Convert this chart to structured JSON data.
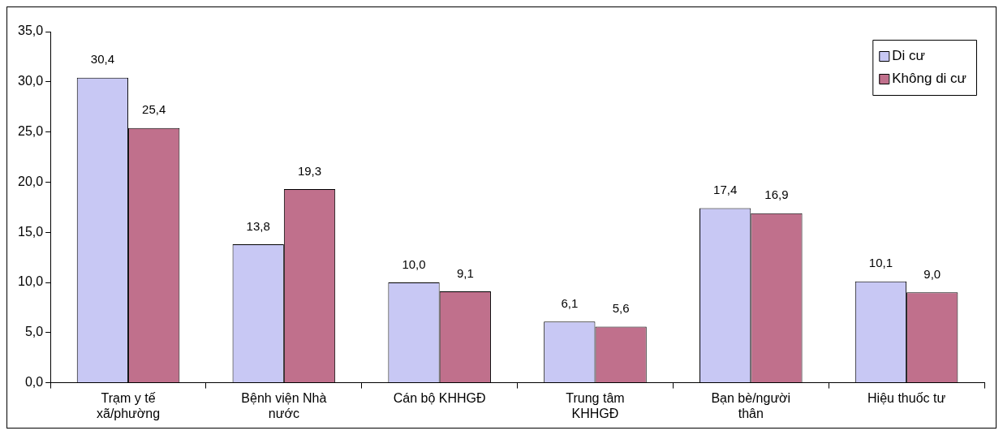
{
  "chart_data": {
    "type": "bar",
    "categories": [
      "Trạm y tế xã/phường",
      "Bệnh viện Nhà nước",
      "Cán bộ KHHGĐ",
      "Trung tâm KHHGĐ",
      "Bạn bè/người thân",
      "Hiệu thuốc tư"
    ],
    "series": [
      {
        "name": "Di cư",
        "color": "#c8c8f4",
        "values": [
          30.4,
          13.8,
          10.0,
          6.1,
          17.4,
          10.1
        ],
        "value_labels": [
          "30,4",
          "13,8",
          "10,0",
          "6,1",
          "17,4",
          "10,1"
        ]
      },
      {
        "name": "Không di cư",
        "color": "#c0708c",
        "values": [
          25.4,
          19.3,
          9.1,
          5.6,
          16.9,
          9.0
        ],
        "value_labels": [
          "25,4",
          "19,3",
          "9,1",
          "5,6",
          "16,9",
          "9,0"
        ]
      }
    ],
    "ylim": [
      0,
      35
    ],
    "yticks": [
      {
        "value": 0,
        "label": "0,0"
      },
      {
        "value": 5,
        "label": "5,0"
      },
      {
        "value": 10,
        "label": "10,0"
      },
      {
        "value": 15,
        "label": "15,0"
      },
      {
        "value": 20,
        "label": "20,0"
      },
      {
        "value": 25,
        "label": "25,0"
      },
      {
        "value": 30,
        "label": "30,0"
      },
      {
        "value": 35,
        "label": "35,0"
      }
    ],
    "grid": false,
    "legend": "top right"
  }
}
